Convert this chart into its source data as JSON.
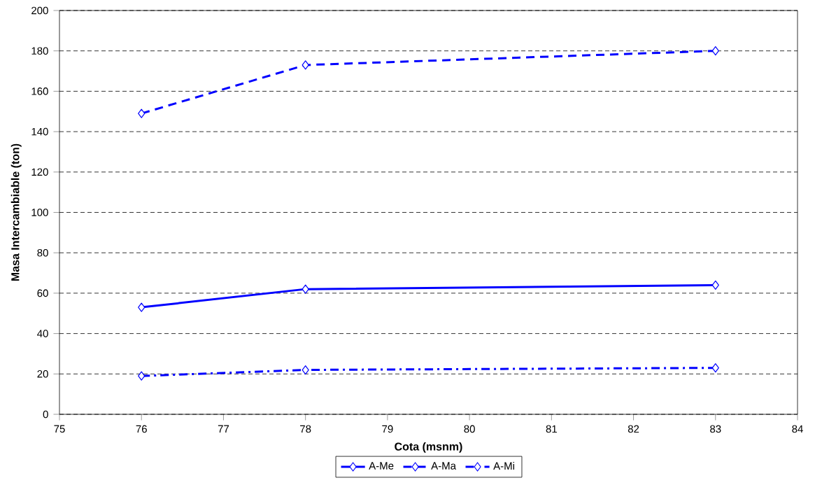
{
  "chart_data": {
    "type": "line",
    "xlabel": "Cota (msnm)",
    "ylabel": "Masa Intercambiable (ton)",
    "x": [
      76,
      78,
      83
    ],
    "series": [
      {
        "name": "A-Me",
        "color": "#0000ff",
        "values": [
          53,
          62,
          64
        ],
        "line_style": "solid"
      },
      {
        "name": "A-Ma",
        "color": "#0000ff",
        "values": [
          149,
          173,
          180
        ],
        "line_style": "dashed"
      },
      {
        "name": "A-Mi",
        "color": "#0000ff",
        "values": [
          19,
          22,
          23
        ],
        "line_style": "dashdot"
      }
    ],
    "xlim": [
      75,
      84
    ],
    "xticks": [
      75,
      76,
      77,
      78,
      79,
      80,
      81,
      82,
      83,
      84
    ],
    "ylim": [
      0,
      200
    ],
    "yticks": [
      0,
      20,
      40,
      60,
      80,
      100,
      120,
      140,
      160,
      180,
      200
    ],
    "grid": "y",
    "legend": "bottom",
    "marker": "diamond"
  }
}
